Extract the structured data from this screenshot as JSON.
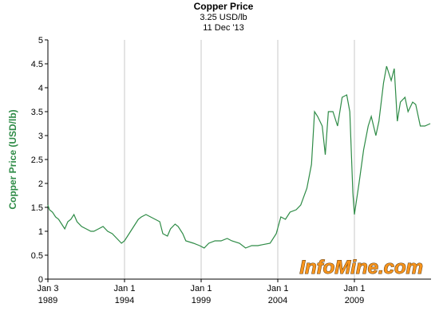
{
  "chart_data": {
    "type": "line",
    "title": "Copper Price",
    "subtitle": "3.25 USD/lb",
    "date": "11 Dec '13",
    "y_label": "Copper Price (USD/lb)",
    "watermark": "InfoMine.com",
    "grid": true,
    "xlim": [
      1989.0,
      2014.0
    ],
    "ylim": [
      0,
      5
    ],
    "yticks": [
      0,
      0.5,
      1,
      1.5,
      2,
      2.5,
      3,
      3.5,
      4,
      4.5,
      5
    ],
    "xticks": [
      {
        "value": 1989.0,
        "label": [
          "Jan 3",
          "1989"
        ]
      },
      {
        "value": 1994.0,
        "label": [
          "Jan 1",
          "1994"
        ]
      },
      {
        "value": 1999.0,
        "label": [
          "Jan 1",
          "1999"
        ]
      },
      {
        "value": 2004.0,
        "label": [
          "Jan 1",
          "2004"
        ]
      },
      {
        "value": 2009.0,
        "label": [
          "Jan 1",
          "2009"
        ]
      }
    ],
    "series": [
      {
        "name": "Copper Price",
        "color": "#2e8b46",
        "x": [
          1989.0,
          1989.1,
          1989.3,
          1989.5,
          1989.7,
          1989.9,
          1990.1,
          1990.3,
          1990.5,
          1990.7,
          1990.9,
          1991.2,
          1991.5,
          1991.8,
          1992.0,
          1992.3,
          1992.6,
          1992.9,
          1993.2,
          1993.5,
          1993.8,
          1994.0,
          1994.3,
          1994.6,
          1994.9,
          1995.1,
          1995.4,
          1995.7,
          1996.0,
          1996.3,
          1996.5,
          1996.8,
          1997.0,
          1997.3,
          1997.5,
          1997.8,
          1998.0,
          1998.5,
          1998.9,
          1999.2,
          1999.5,
          1999.9,
          2000.3,
          2000.7,
          2001.0,
          2001.5,
          2001.9,
          2002.3,
          2002.7,
          2003.0,
          2003.5,
          2003.9,
          2004.2,
          2004.5,
          2004.8,
          2005.2,
          2005.5,
          2005.9,
          2006.2,
          2006.4,
          2006.6,
          2006.9,
          2007.1,
          2007.3,
          2007.6,
          2007.9,
          2008.2,
          2008.5,
          2008.7,
          2008.9,
          2009.0,
          2009.3,
          2009.6,
          2009.9,
          2010.1,
          2010.4,
          2010.6,
          2010.9,
          2011.1,
          2011.4,
          2011.6,
          2011.8,
          2012.0,
          2012.3,
          2012.5,
          2012.8,
          2013.0,
          2013.3,
          2013.6,
          2013.95
        ],
        "values": [
          1.55,
          1.45,
          1.4,
          1.3,
          1.25,
          1.15,
          1.05,
          1.2,
          1.25,
          1.35,
          1.2,
          1.1,
          1.05,
          1.0,
          1.0,
          1.05,
          1.1,
          1.0,
          0.95,
          0.85,
          0.75,
          0.8,
          0.95,
          1.1,
          1.25,
          1.3,
          1.35,
          1.3,
          1.25,
          1.2,
          0.95,
          0.9,
          1.05,
          1.15,
          1.1,
          0.95,
          0.8,
          0.75,
          0.7,
          0.65,
          0.75,
          0.8,
          0.8,
          0.85,
          0.8,
          0.75,
          0.65,
          0.7,
          0.7,
          0.72,
          0.75,
          0.95,
          1.3,
          1.25,
          1.4,
          1.45,
          1.55,
          1.9,
          2.4,
          3.5,
          3.4,
          3.2,
          2.6,
          3.5,
          3.5,
          3.2,
          3.8,
          3.85,
          3.5,
          1.8,
          1.35,
          2.0,
          2.7,
          3.2,
          3.4,
          3.0,
          3.3,
          4.1,
          4.45,
          4.15,
          4.4,
          3.3,
          3.7,
          3.8,
          3.5,
          3.7,
          3.65,
          3.2,
          3.2,
          3.25
        ]
      }
    ]
  }
}
